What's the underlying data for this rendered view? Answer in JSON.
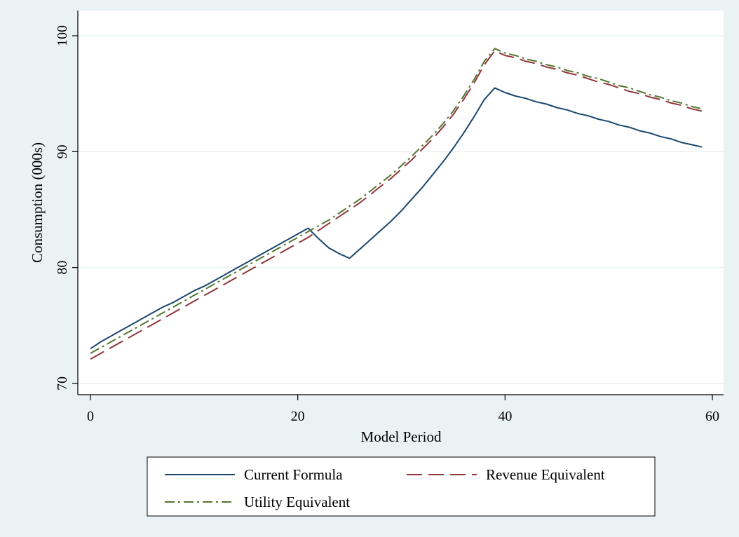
{
  "chart_data": {
    "type": "line",
    "xlabel": "Model Period",
    "ylabel": "Consumption (000s)",
    "xlim": [
      0,
      60
    ],
    "ylim": [
      70,
      100
    ],
    "xticks": [
      0,
      20,
      40,
      60
    ],
    "yticks": [
      70,
      80,
      90,
      100
    ],
    "grid": true,
    "legend_position": "bottom",
    "x": [
      0,
      1,
      2,
      3,
      4,
      5,
      6,
      7,
      8,
      9,
      10,
      11,
      12,
      13,
      14,
      15,
      16,
      17,
      18,
      19,
      20,
      21,
      22,
      23,
      24,
      25,
      26,
      27,
      28,
      29,
      30,
      31,
      32,
      33,
      34,
      35,
      36,
      37,
      38,
      39,
      40,
      41,
      42,
      43,
      44,
      45,
      46,
      47,
      48,
      49,
      50,
      51,
      52,
      53,
      54,
      55,
      56,
      57,
      58,
      59
    ],
    "series": [
      {
        "name": "Current Formula",
        "color": "#1a476f",
        "dash": "solid",
        "values": [
          73.0,
          73.6,
          74.1,
          74.6,
          75.1,
          75.6,
          76.1,
          76.6,
          77.0,
          77.5,
          78.0,
          78.4,
          78.9,
          79.4,
          79.9,
          80.4,
          80.9,
          81.4,
          81.9,
          82.4,
          82.9,
          83.4,
          82.5,
          81.7,
          81.2,
          80.8,
          81.6,
          82.4,
          83.2,
          84.0,
          84.9,
          85.9,
          86.9,
          88.0,
          89.1,
          90.3,
          91.6,
          93.0,
          94.5,
          95.5,
          95.1,
          94.8,
          94.6,
          94.3,
          94.1,
          93.8,
          93.6,
          93.3,
          93.1,
          92.8,
          92.6,
          92.3,
          92.1,
          91.8,
          91.6,
          91.3,
          91.1,
          90.8,
          90.6,
          90.4
        ]
      },
      {
        "name": "Revenue Equivalent",
        "color": "#90353b",
        "dash": "long-dash",
        "values": [
          72.1,
          72.6,
          73.1,
          73.6,
          74.1,
          74.6,
          75.1,
          75.6,
          76.1,
          76.6,
          77.1,
          77.6,
          78.1,
          78.6,
          79.1,
          79.6,
          80.1,
          80.6,
          81.1,
          81.6,
          82.1,
          82.6,
          83.2,
          83.8,
          84.4,
          85.0,
          85.6,
          86.3,
          87.0,
          87.7,
          88.5,
          89.3,
          90.2,
          91.1,
          92.1,
          93.2,
          94.5,
          95.9,
          97.5,
          98.7,
          98.3,
          98.1,
          97.8,
          97.6,
          97.3,
          97.1,
          96.8,
          96.6,
          96.3,
          96.0,
          95.8,
          95.5,
          95.2,
          95.0,
          94.7,
          94.5,
          94.2,
          94.0,
          93.7,
          93.5
        ]
      },
      {
        "name": "Utility Equivalent",
        "color": "#55752f",
        "dash": "dash-dot",
        "values": [
          72.6,
          73.1,
          73.6,
          74.1,
          74.6,
          75.1,
          75.6,
          76.1,
          76.6,
          77.1,
          77.6,
          78.1,
          78.6,
          79.1,
          79.6,
          80.1,
          80.6,
          81.1,
          81.6,
          82.1,
          82.6,
          83.1,
          83.6,
          84.1,
          84.7,
          85.3,
          85.9,
          86.6,
          87.3,
          88.0,
          88.8,
          89.6,
          90.5,
          91.4,
          92.4,
          93.5,
          94.8,
          96.2,
          97.8,
          98.9,
          98.5,
          98.3,
          98.0,
          97.8,
          97.5,
          97.3,
          97.0,
          96.8,
          96.5,
          96.3,
          96.0,
          95.7,
          95.5,
          95.2,
          94.9,
          94.7,
          94.4,
          94.2,
          93.9,
          93.7
        ]
      }
    ]
  }
}
